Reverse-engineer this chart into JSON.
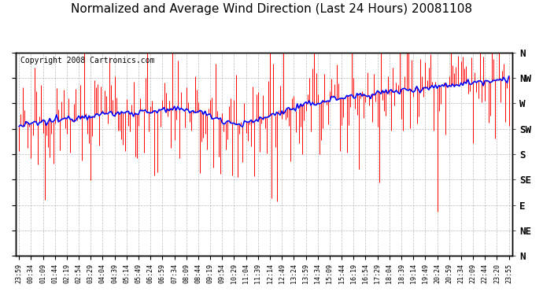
{
  "title": "Normalized and Average Wind Direction (Last 24 Hours) 20081108",
  "copyright": "Copyright 2008 Cartronics.com",
  "background_color": "#ffffff",
  "plot_bg_color": "#ffffff",
  "grid_color": "#aaaaaa",
  "ytick_labels": [
    "N",
    "NW",
    "W",
    "SW",
    "S",
    "SE",
    "E",
    "NE",
    "N"
  ],
  "ytick_values": [
    360,
    315,
    270,
    225,
    180,
    135,
    90,
    45,
    0
  ],
  "ylim": [
    0,
    360
  ],
  "line_color_avg": "#0000ff",
  "bar_color": "#ff0000",
  "title_fontsize": 11,
  "copyright_fontsize": 7,
  "tick_fontsize": 7,
  "n_points": 288,
  "x_labels": [
    "23:59",
    "00:34",
    "01:09",
    "01:44",
    "02:19",
    "02:54",
    "03:29",
    "04:04",
    "04:39",
    "05:14",
    "05:49",
    "06:24",
    "06:59",
    "07:34",
    "08:09",
    "08:44",
    "09:19",
    "09:54",
    "10:29",
    "11:04",
    "11:39",
    "12:14",
    "12:49",
    "13:24",
    "13:59",
    "14:34",
    "15:09",
    "15:44",
    "16:19",
    "16:54",
    "17:29",
    "18:04",
    "18:39",
    "19:14",
    "19:49",
    "20:24",
    "20:59",
    "21:34",
    "22:09",
    "22:44",
    "23:20",
    "23:55"
  ]
}
